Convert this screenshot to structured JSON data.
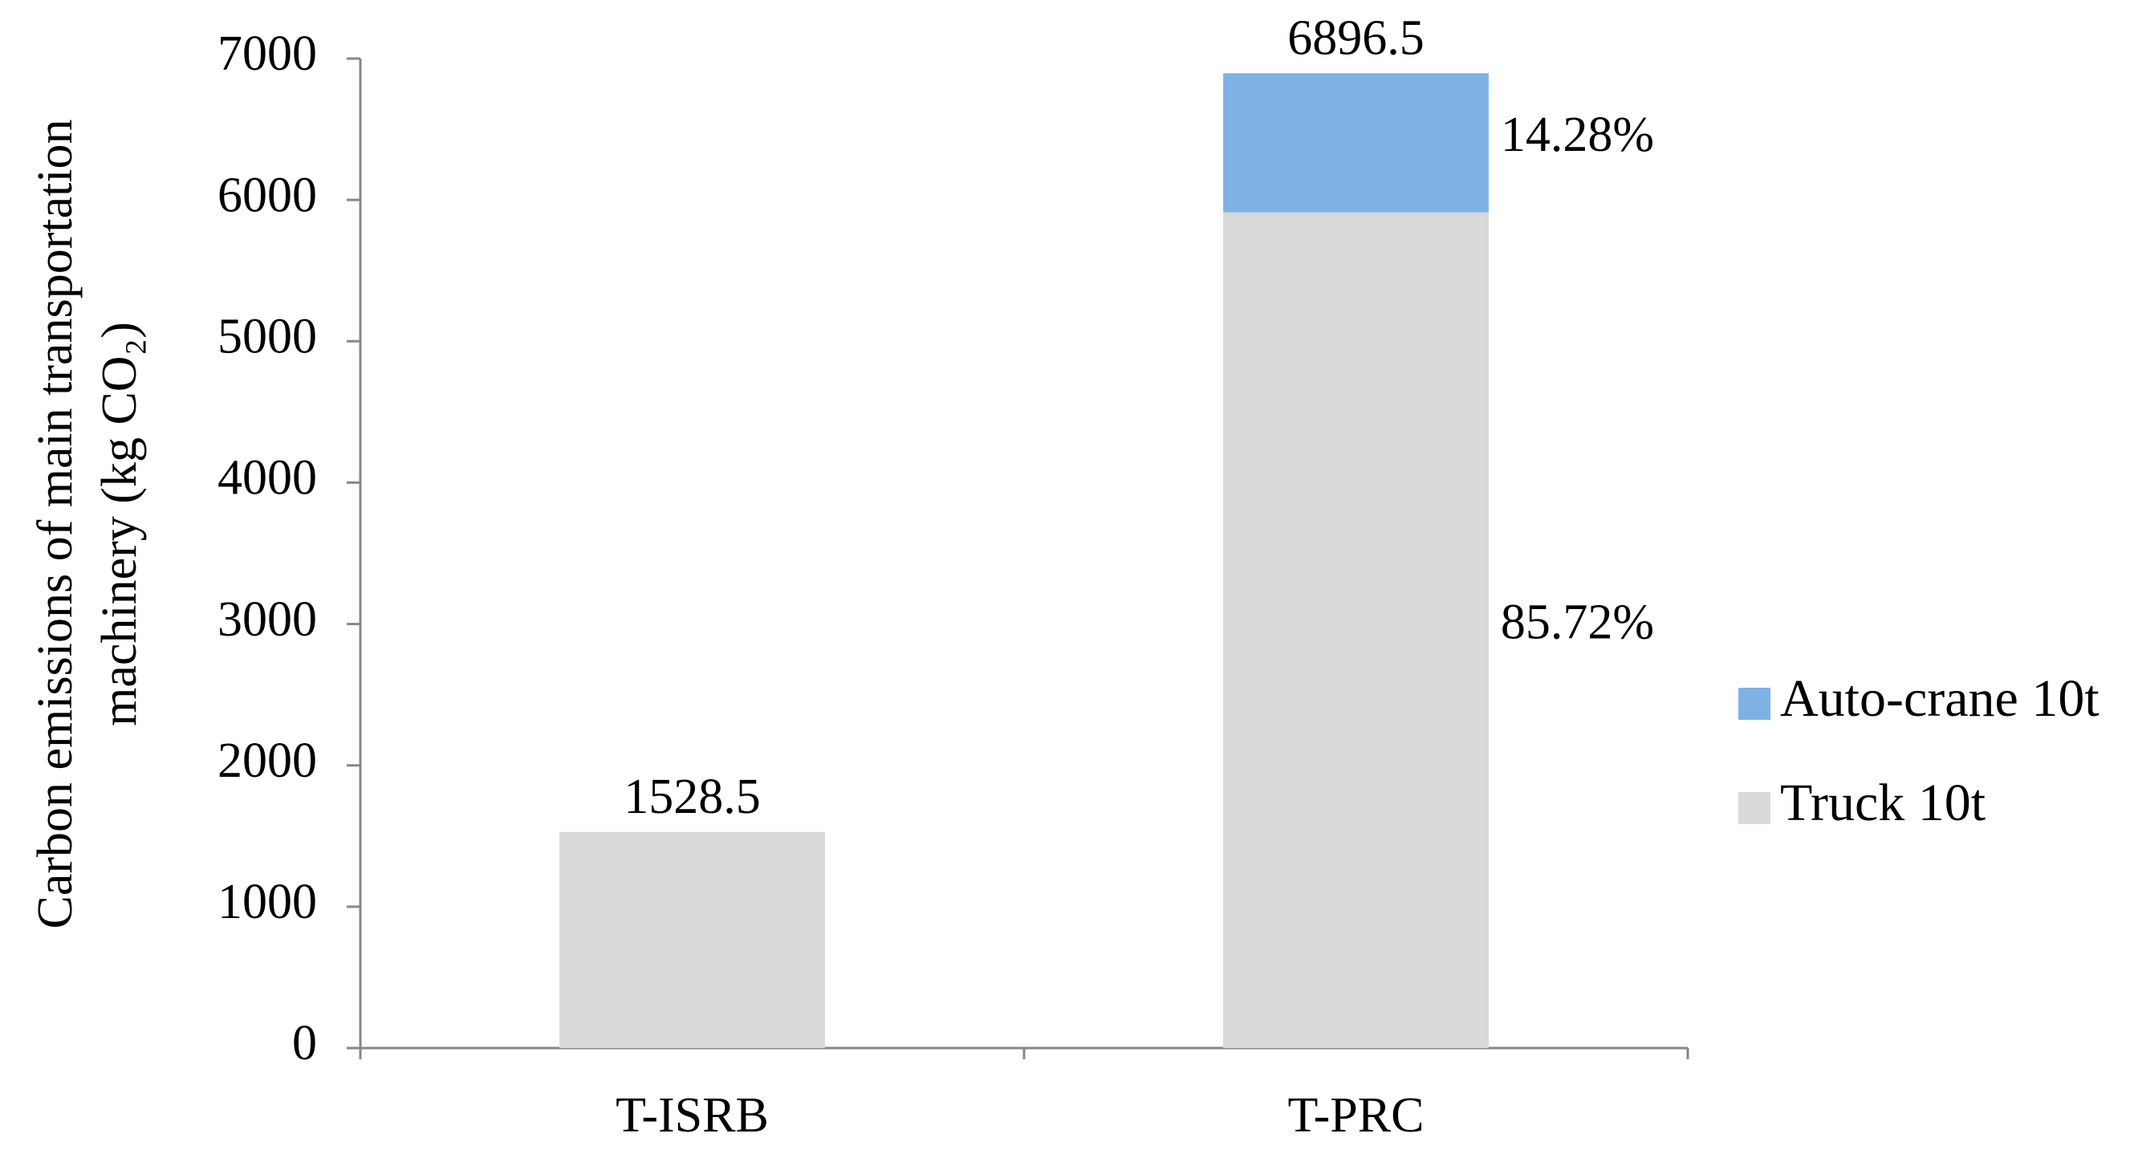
{
  "chart_data": {
    "type": "stacked-bar",
    "y_label": [
      "Carbon emissions of  main transportation",
      "machinery (kg CO₂)"
    ],
    "categories": [
      "T-ISRB",
      "T-PRC"
    ],
    "series": [
      {
        "name": "Truck 10t",
        "color": "#d9d9d9",
        "values": [
          1528.5,
          5911.7
        ],
        "share_labels": [
          null,
          "85.72%"
        ]
      },
      {
        "name": "Auto-crane 10t",
        "color": "#7fb2e4",
        "values": [
          null,
          984.8
        ],
        "share_labels": [
          null,
          "14.28%"
        ]
      }
    ],
    "totals": [
      1528.5,
      6896.5
    ],
    "ylim": [
      0,
      7000
    ],
    "yticks": [
      0,
      1000,
      2000,
      3000,
      4000,
      5000,
      6000,
      7000
    ],
    "grid": false,
    "legend": "right"
  }
}
